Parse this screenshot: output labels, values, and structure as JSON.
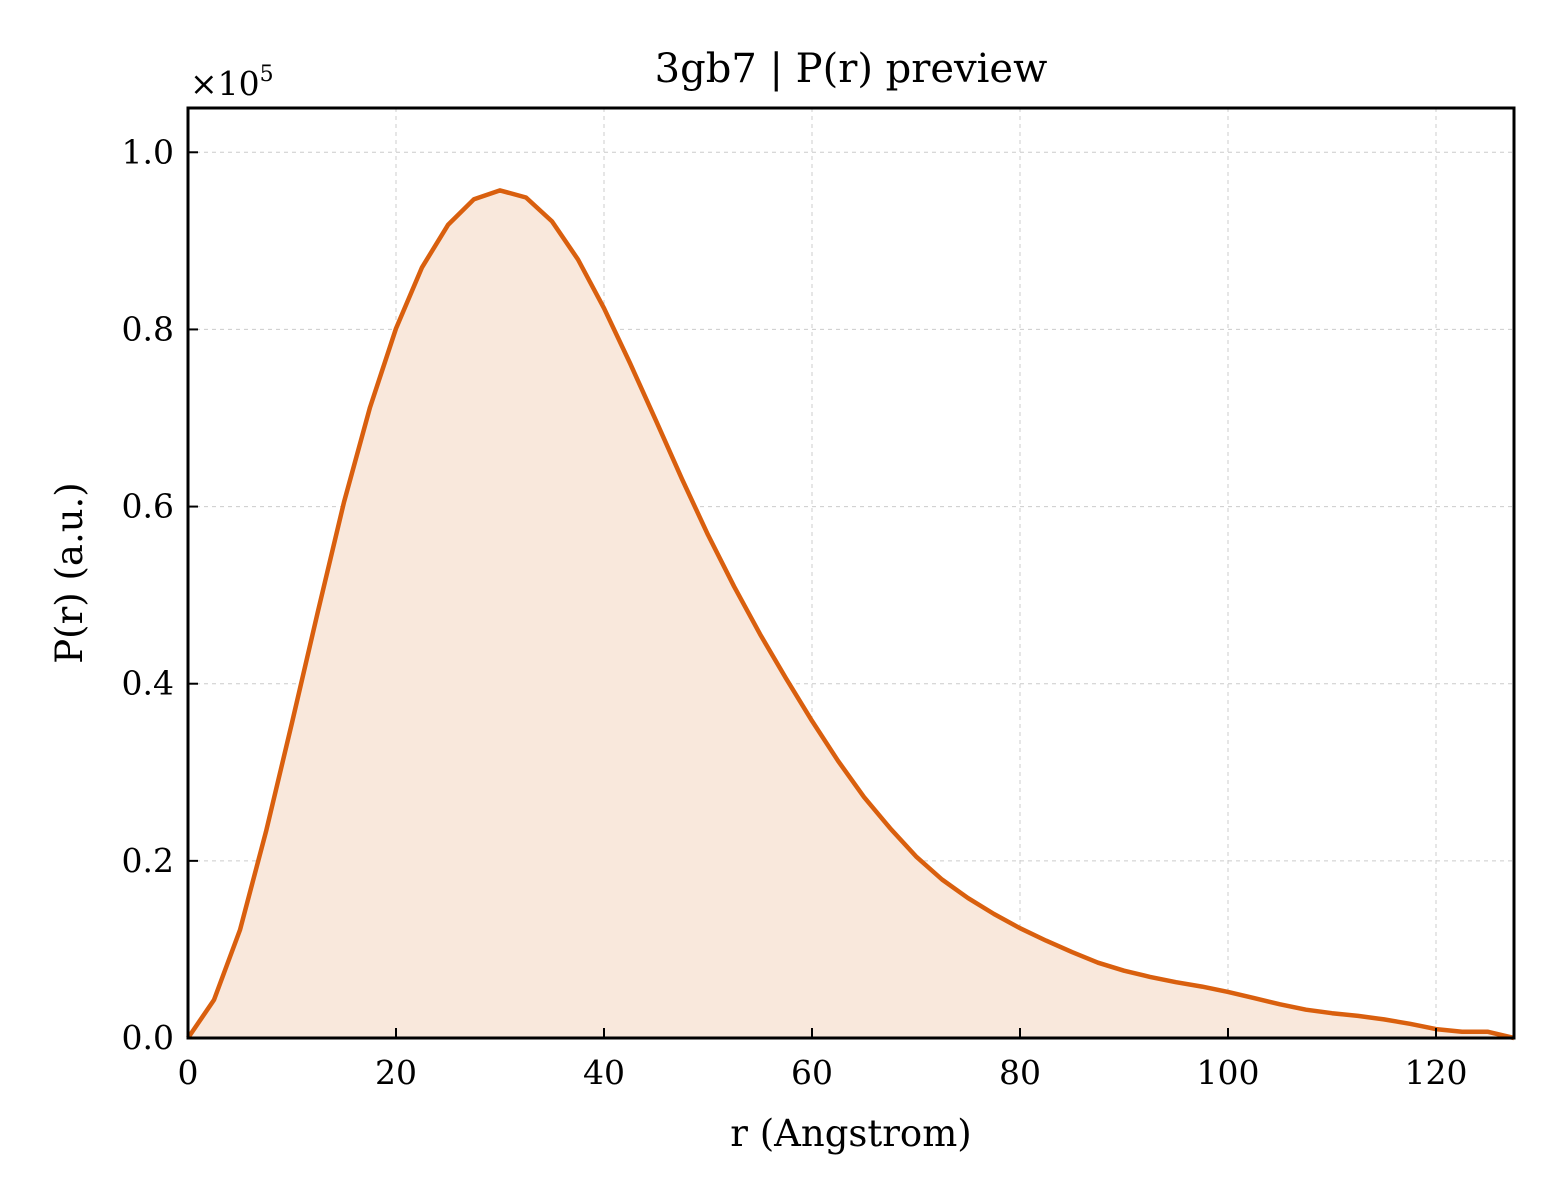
{
  "chart_data": {
    "type": "area",
    "title": "3gb7 | P(r) preview",
    "xlabel": "r (Angstrom)",
    "ylabel": "P(r) (a.u.)",
    "y_multiplier": {
      "base": "×10",
      "exponent": "5"
    },
    "xlim": [
      0,
      127.5
    ],
    "ylim": [
      0,
      1.05
    ],
    "xticks": [
      0,
      20,
      40,
      60,
      80,
      100,
      120
    ],
    "xtick_labels": [
      "0",
      "20",
      "40",
      "60",
      "80",
      "100",
      "120"
    ],
    "yticks": [
      0.0,
      0.2,
      0.4,
      0.6,
      0.8,
      1.0
    ],
    "ytick_labels": [
      "0.0",
      "0.2",
      "0.4",
      "0.6",
      "0.8",
      "1.0"
    ],
    "grid": true,
    "series": [
      {
        "color": "#d95f0e",
        "fill_color": "#f9e8dc",
        "x": [
          0,
          2.5,
          5,
          7.5,
          10,
          12.5,
          15,
          17.5,
          20,
          22.5,
          25,
          27.5,
          30,
          32.5,
          35,
          37.5,
          40,
          42.5,
          45,
          47.5,
          50,
          52.5,
          55,
          57.5,
          60,
          62.5,
          65,
          67.5,
          70,
          72.5,
          75,
          77.5,
          80,
          82.5,
          85,
          87.5,
          90,
          92.5,
          95,
          97.5,
          100,
          102.5,
          105,
          107.5,
          110,
          112.5,
          115,
          117.5,
          120,
          122.5,
          125,
          127.5
        ],
        "y": [
          0.0,
          0.043,
          0.122,
          0.233,
          0.356,
          0.482,
          0.605,
          0.712,
          0.801,
          0.87,
          0.918,
          0.947,
          0.957,
          0.949,
          0.922,
          0.879,
          0.824,
          0.762,
          0.697,
          0.631,
          0.568,
          0.51,
          0.456,
          0.406,
          0.358,
          0.313,
          0.272,
          0.237,
          0.205,
          0.179,
          0.158,
          0.14,
          0.124,
          0.11,
          0.097,
          0.085,
          0.076,
          0.069,
          0.063,
          0.058,
          0.052,
          0.045,
          0.038,
          0.032,
          0.028,
          0.025,
          0.021,
          0.016,
          0.01,
          0.007,
          0.007,
          0.0
        ]
      }
    ]
  }
}
